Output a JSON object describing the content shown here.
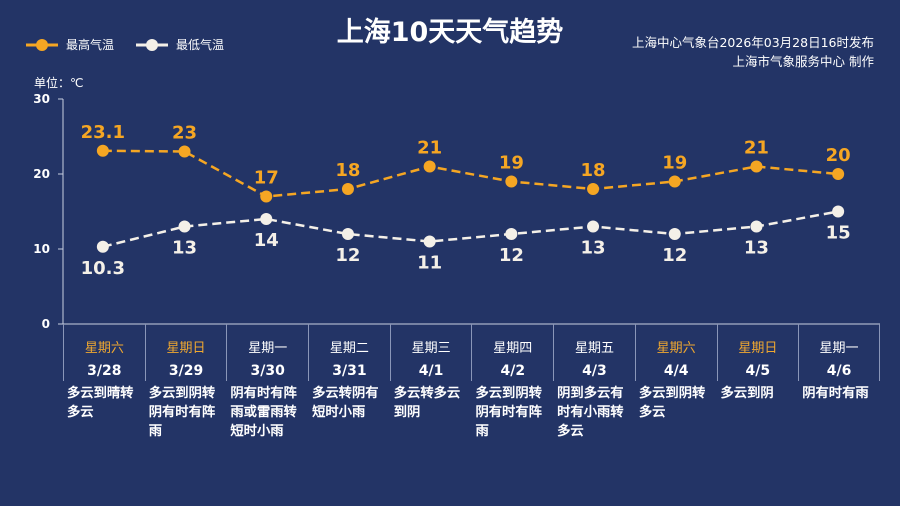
{
  "title": "上海10天天气趋势",
  "issuer_line1": "上海中心气象台2026年03月28日16时发布",
  "issuer_line2": "上海市气象服务中心 制作",
  "colors": {
    "background": "#233466",
    "high": "#f5a623",
    "low": "#f4f0e8",
    "weekend": "#f0a830"
  },
  "chart_data": {
    "type": "line",
    "title": "上海10天天气趋势",
    "ylabel": "单位：℃",
    "ylim": [
      0,
      30
    ],
    "yticks": [
      0,
      10,
      20,
      30
    ],
    "grid": false,
    "legend_position": "top-left",
    "categories": [
      "3/28",
      "3/29",
      "3/30",
      "3/31",
      "4/1",
      "4/2",
      "4/3",
      "4/4",
      "4/5",
      "4/6"
    ],
    "series": [
      {
        "name": "最高气温",
        "color": "#f5a623",
        "values": [
          23.1,
          23,
          17,
          18,
          21,
          19,
          18,
          19,
          21,
          20
        ],
        "style": "dashed"
      },
      {
        "name": "最低气温",
        "color": "#f4f0e8",
        "values": [
          10.3,
          13,
          14,
          12,
          11,
          12,
          13,
          12,
          13,
          15
        ],
        "style": "dashed"
      }
    ]
  },
  "days": [
    {
      "weekday": "星期六",
      "date": "3/28",
      "weekend": true,
      "weather": "多云到晴转多云"
    },
    {
      "weekday": "星期日",
      "date": "3/29",
      "weekend": true,
      "weather": "多云到阴转阴有时有阵雨"
    },
    {
      "weekday": "星期一",
      "date": "3/30",
      "weekend": false,
      "weather": "阴有时有阵雨或雷雨转短时小雨"
    },
    {
      "weekday": "星期二",
      "date": "3/31",
      "weekend": false,
      "weather": "多云转阴有短时小雨"
    },
    {
      "weekday": "星期三",
      "date": "4/1",
      "weekend": false,
      "weather": "多云转多云到阴"
    },
    {
      "weekday": "星期四",
      "date": "4/2",
      "weekend": false,
      "weather": "多云到阴转阴有时有阵雨"
    },
    {
      "weekday": "星期五",
      "date": "4/3",
      "weekend": false,
      "weather": "阴到多云有时有小雨转多云"
    },
    {
      "weekday": "星期六",
      "date": "4/4",
      "weekend": true,
      "weather": "多云到阴转多云"
    },
    {
      "weekday": "星期日",
      "date": "4/5",
      "weekend": true,
      "weather": "多云到阴"
    },
    {
      "weekday": "星期一",
      "date": "4/6",
      "weekend": false,
      "weather": "阴有时有雨"
    }
  ]
}
